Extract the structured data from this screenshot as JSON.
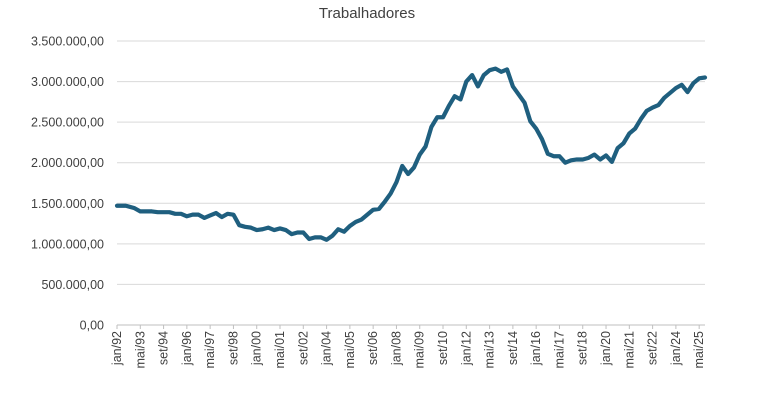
{
  "chart_data": {
    "type": "line",
    "title": "Trabalhadores",
    "xlabel": "",
    "ylabel": "",
    "ylim": [
      0,
      3500000
    ],
    "y_ticks": [
      0,
      500000,
      1000000,
      1500000,
      2000000,
      2500000,
      3000000,
      3500000
    ],
    "y_tick_labels": [
      "0,00",
      "500.000,00",
      "1.000.000,00",
      "1.500.000,00",
      "2.000.000,00",
      "2.500.000,00",
      "3.000.000,00",
      "3.500.000,00"
    ],
    "x_tick_labels": [
      "jan/92",
      "mai/93",
      "set/94",
      "jan/96",
      "mai/97",
      "set/98",
      "jan/00",
      "mai/01",
      "set/02",
      "jan/04",
      "mai/05",
      "set/06",
      "jan/08",
      "mai/09",
      "set/10",
      "jan/12",
      "mai/13",
      "set/14",
      "jan/16",
      "mai/17",
      "set/18",
      "jan/20",
      "mai/21",
      "set/22",
      "jan/24",
      "mai/25"
    ],
    "grid": true,
    "legend": "none",
    "color": "#1f5f7f",
    "series": [
      {
        "x": [
          "jan/92",
          "jul/92",
          "jan/93",
          "mai/93",
          "set/93",
          "jan/94",
          "mai/94",
          "set/94",
          "jan/95",
          "mai/95",
          "set/95",
          "jan/96",
          "mai/96",
          "set/96",
          "jan/97",
          "mai/97",
          "set/97",
          "jan/98",
          "mai/98",
          "set/98",
          "jan/99",
          "mai/99",
          "set/99",
          "jan/00",
          "mai/00",
          "set/00",
          "jan/01",
          "mai/01",
          "set/01",
          "jan/02",
          "mai/02",
          "set/02",
          "jan/03",
          "mai/03",
          "set/03",
          "jan/04",
          "mai/04",
          "set/04",
          "jan/05",
          "mai/05",
          "set/05",
          "jan/06",
          "mai/06",
          "set/06",
          "jan/07",
          "mai/07",
          "set/07",
          "jan/08",
          "mai/08",
          "set/08",
          "jan/09",
          "mai/09",
          "set/09",
          "jan/10",
          "mai/10",
          "set/10",
          "jan/11",
          "mai/11",
          "set/11",
          "jan/12",
          "mai/12",
          "set/12",
          "jan/13",
          "mai/13",
          "set/13",
          "jan/14",
          "mai/14",
          "set/14",
          "jan/15",
          "mai/15",
          "set/15",
          "jan/16",
          "mai/16",
          "set/16",
          "jan/17",
          "mai/17",
          "set/17",
          "jan/18",
          "mai/18",
          "set/18",
          "jan/19",
          "mai/19",
          "set/19",
          "jan/20",
          "mai/20",
          "set/20",
          "jan/21",
          "mai/21",
          "set/21",
          "jan/22",
          "mai/22",
          "set/22",
          "jan/23",
          "mai/23",
          "set/23",
          "jan/24",
          "mai/24",
          "set/24",
          "jan/25",
          "mai/25",
          "set/25"
        ],
        "values": [
          1470000,
          1470000,
          1440000,
          1400000,
          1400000,
          1400000,
          1390000,
          1390000,
          1390000,
          1370000,
          1370000,
          1340000,
          1360000,
          1360000,
          1320000,
          1350000,
          1380000,
          1330000,
          1370000,
          1360000,
          1230000,
          1210000,
          1200000,
          1170000,
          1180000,
          1200000,
          1170000,
          1190000,
          1170000,
          1120000,
          1140000,
          1140000,
          1060000,
          1080000,
          1080000,
          1050000,
          1100000,
          1180000,
          1150000,
          1220000,
          1270000,
          1300000,
          1360000,
          1420000,
          1430000,
          1520000,
          1620000,
          1760000,
          1960000,
          1860000,
          1940000,
          2100000,
          2200000,
          2440000,
          2560000,
          2560000,
          2700000,
          2820000,
          2780000,
          3000000,
          3080000,
          2940000,
          3080000,
          3140000,
          3160000,
          3120000,
          3150000,
          2940000,
          2840000,
          2740000,
          2510000,
          2420000,
          2290000,
          2110000,
          2080000,
          2080000,
          2000000,
          2030000,
          2040000,
          2040000,
          2060000,
          2100000,
          2040000,
          2090000,
          2010000,
          2180000,
          2240000,
          2360000,
          2420000,
          2540000,
          2640000,
          2680000,
          2710000,
          2800000,
          2860000,
          2920000,
          2960000,
          2870000,
          2980000,
          3040000,
          3050000
        ]
      }
    ]
  }
}
